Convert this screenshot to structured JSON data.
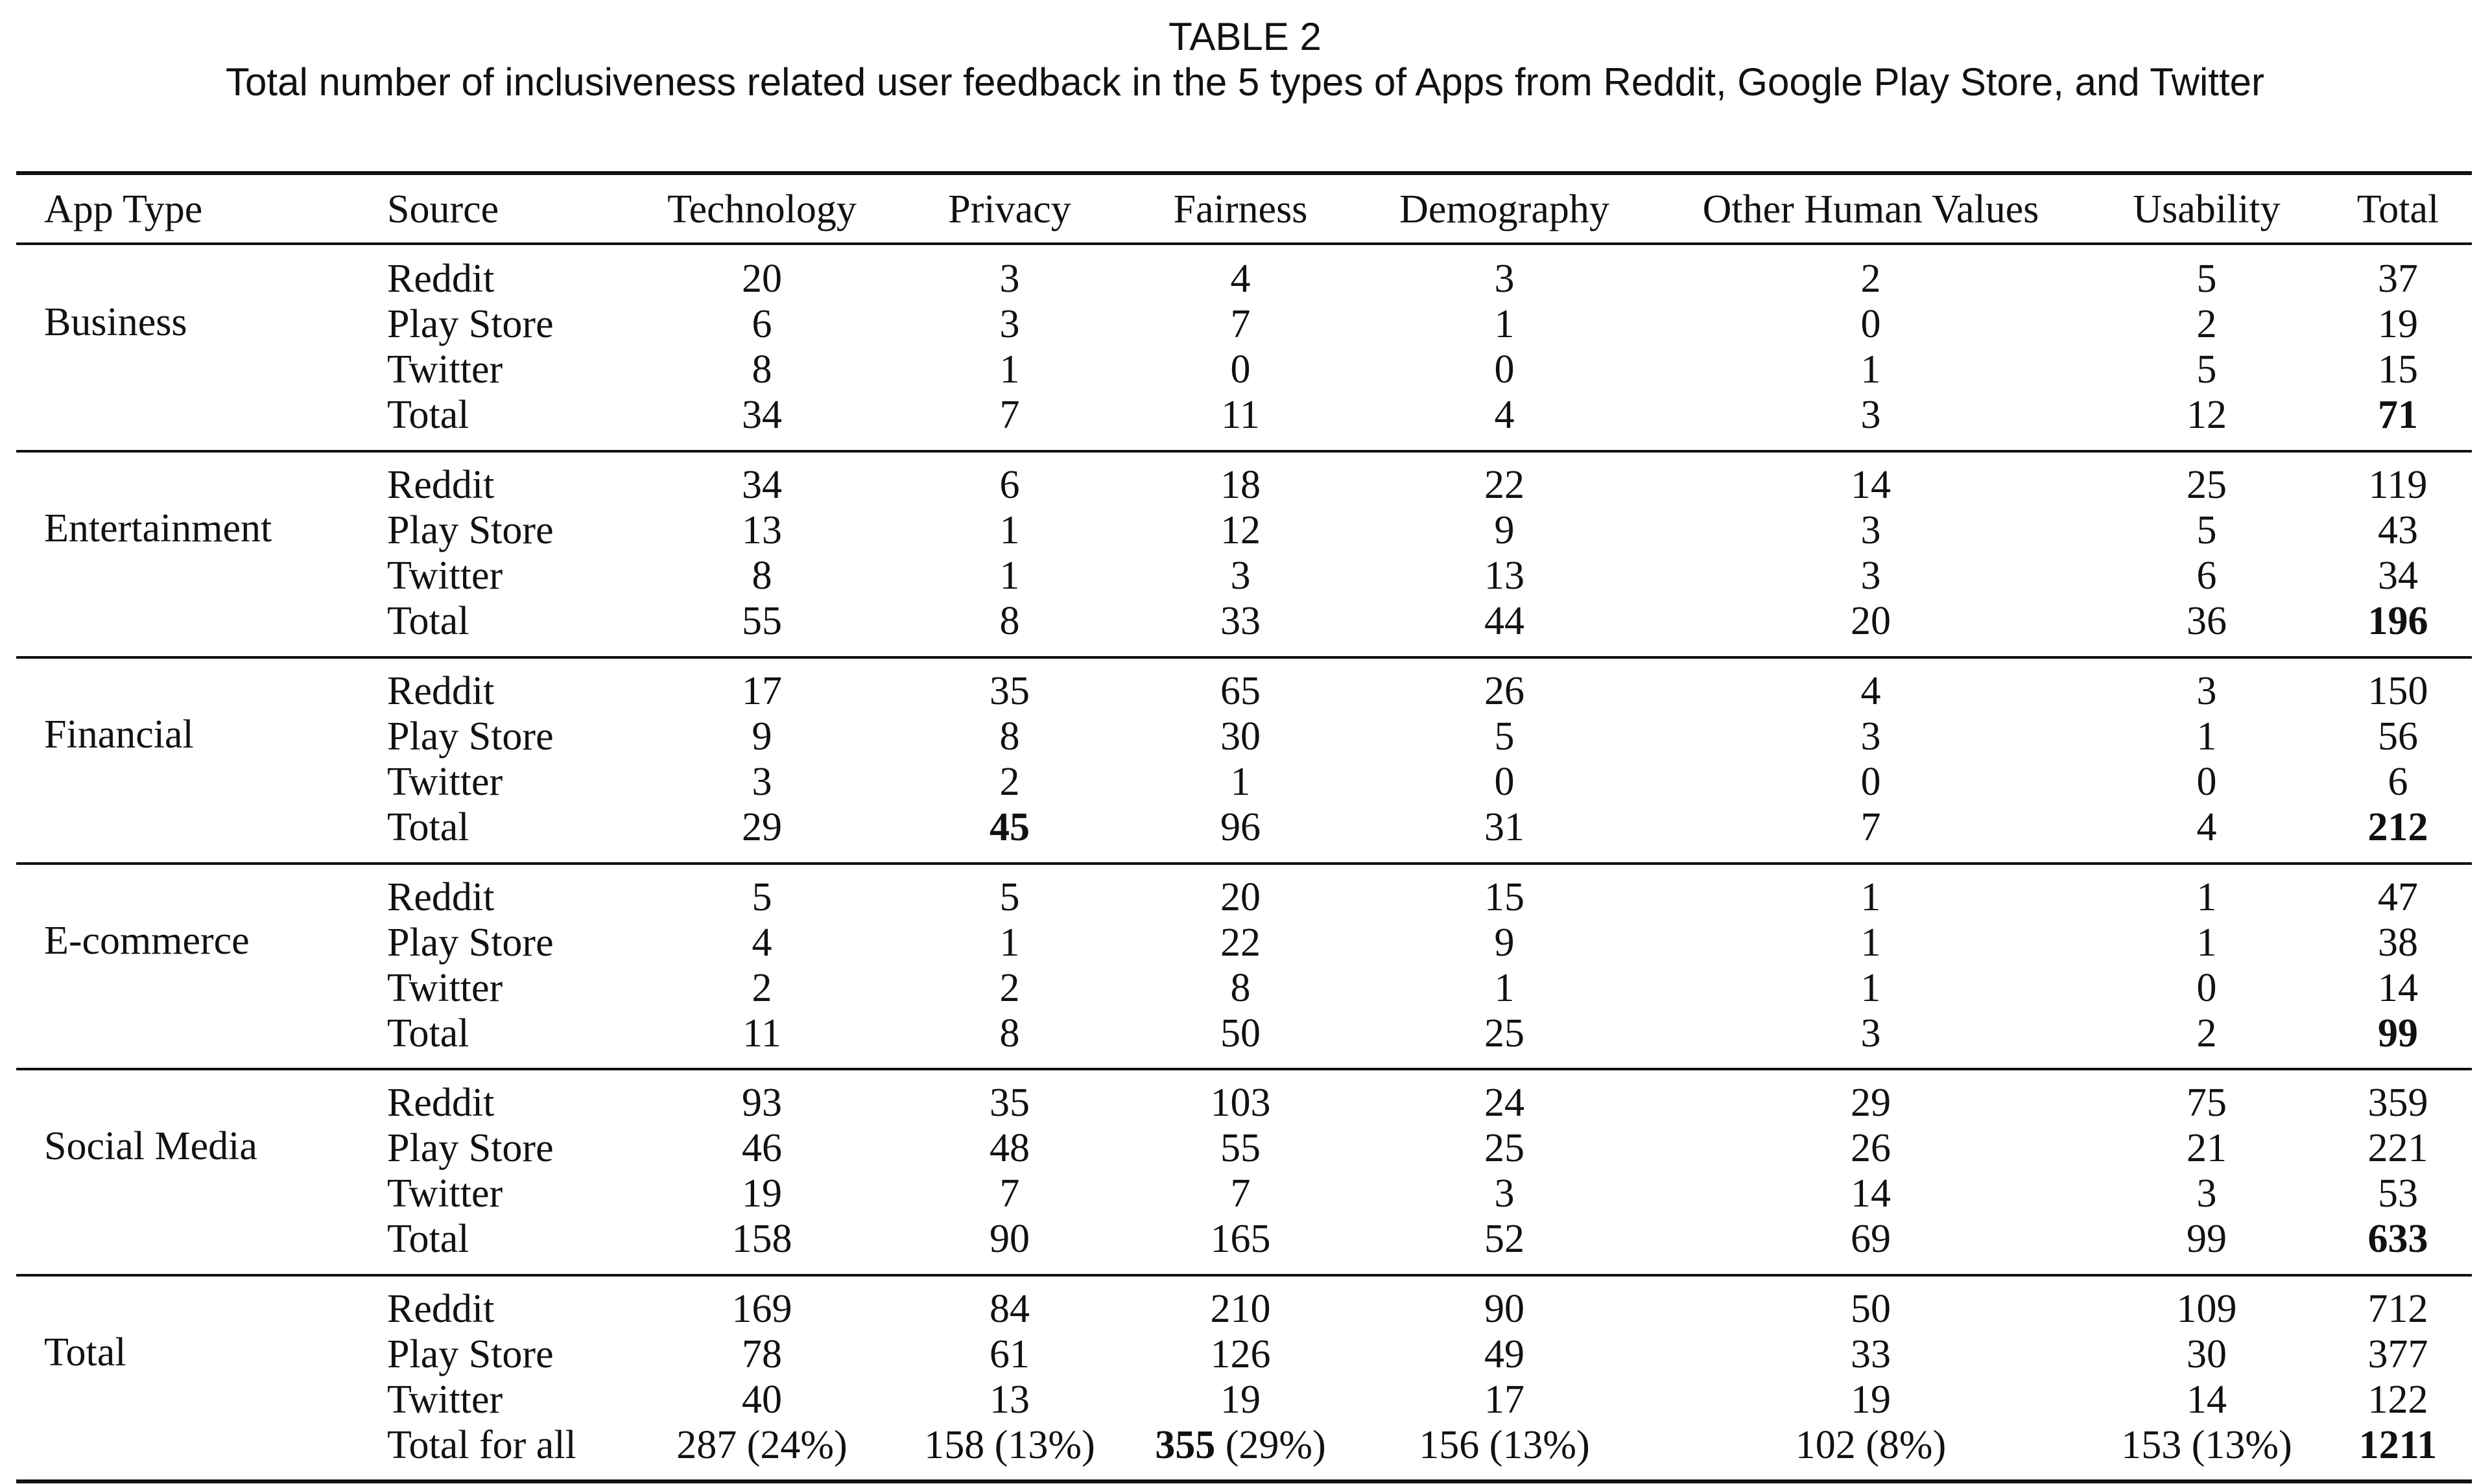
{
  "caption": {
    "label": "TABLE 2",
    "title": "Total number of inclusiveness related user feedback in the 5 types of Apps from Reddit, Google Play Store, and Twitter"
  },
  "table": {
    "headers": [
      "App Type",
      "Source",
      "Technology",
      "Privacy",
      "Fairness",
      "Demography",
      "Other Human Values",
      "Usability",
      "Total"
    ],
    "groups": [
      {
        "app_type": "Business",
        "rows": [
          {
            "source": "Reddit",
            "values": [
              "20",
              "3",
              "4",
              "3",
              "2",
              "5",
              "37"
            ]
          },
          {
            "source": "Play Store",
            "values": [
              "6",
              "3",
              "7",
              "1",
              "0",
              "2",
              "19"
            ]
          },
          {
            "source": "Twitter",
            "values": [
              "8",
              "1",
              "0",
              "0",
              "1",
              "5",
              "15"
            ]
          },
          {
            "source": "Total",
            "values": [
              "34",
              "7",
              "11",
              "4",
              "3",
              "12",
              "71"
            ]
          }
        ]
      },
      {
        "app_type": "Entertainment",
        "rows": [
          {
            "source": "Reddit",
            "values": [
              "34",
              "6",
              "18",
              "22",
              "14",
              "25",
              "119"
            ]
          },
          {
            "source": "Play Store",
            "values": [
              "13",
              "1",
              "12",
              "9",
              "3",
              "5",
              "43"
            ]
          },
          {
            "source": "Twitter",
            "values": [
              "8",
              "1",
              "3",
              "13",
              "3",
              "6",
              "34"
            ]
          },
          {
            "source": "Total",
            "values": [
              "55",
              "8",
              "33",
              "44",
              "20",
              "36",
              "196"
            ]
          }
        ]
      },
      {
        "app_type": "Financial",
        "rows": [
          {
            "source": "Reddit",
            "values": [
              "17",
              "35",
              "65",
              "26",
              "4",
              "3",
              "150"
            ]
          },
          {
            "source": "Play Store",
            "values": [
              "9",
              "8",
              "30",
              "5",
              "3",
              "1",
              "56"
            ]
          },
          {
            "source": "Twitter",
            "values": [
              "3",
              "2",
              "1",
              "0",
              "0",
              "0",
              "6"
            ]
          },
          {
            "source": "Total",
            "values": [
              "29",
              "45",
              "96",
              "31",
              "7",
              "4",
              "212"
            ]
          }
        ]
      },
      {
        "app_type": "E-commerce",
        "rows": [
          {
            "source": "Reddit",
            "values": [
              "5",
              "5",
              "20",
              "15",
              "1",
              "1",
              "47"
            ]
          },
          {
            "source": "Play Store",
            "values": [
              "4",
              "1",
              "22",
              "9",
              "1",
              "1",
              "38"
            ]
          },
          {
            "source": "Twitter",
            "values": [
              "2",
              "2",
              "8",
              "1",
              "1",
              "0",
              "14"
            ]
          },
          {
            "source": "Total",
            "values": [
              "11",
              "8",
              "50",
              "25",
              "3",
              "2",
              "99"
            ]
          }
        ]
      },
      {
        "app_type": "Social Media",
        "rows": [
          {
            "source": "Reddit",
            "values": [
              "93",
              "35",
              "103",
              "24",
              "29",
              "75",
              "359"
            ]
          },
          {
            "source": "Play Store",
            "values": [
              "46",
              "48",
              "55",
              "25",
              "26",
              "21",
              "221"
            ]
          },
          {
            "source": "Twitter",
            "values": [
              "19",
              "7",
              "7",
              "3",
              "14",
              "3",
              "53"
            ]
          },
          {
            "source": "Total",
            "values": [
              "158",
              "90",
              "165",
              "52",
              "69",
              "99",
              "633"
            ]
          }
        ]
      },
      {
        "app_type": "Total",
        "rows": [
          {
            "source": "Reddit",
            "values": [
              "169",
              "84",
              "210",
              "90",
              "50",
              "109",
              "712"
            ]
          },
          {
            "source": "Play Store",
            "values": [
              "78",
              "61",
              "126",
              "49",
              "33",
              "30",
              "377"
            ]
          },
          {
            "source": "Twitter",
            "values": [
              "40",
              "13",
              "19",
              "17",
              "19",
              "14",
              "122"
            ]
          },
          {
            "source": "Total for all",
            "values": [
              "287 (24%)",
              "158 (13%)",
              "355 (29%)",
              "156 (13%)",
              "102 (8%)",
              "153 (13%)",
              "1211"
            ]
          }
        ]
      }
    ],
    "bold_cells": [
      "Business/Total/Total = 71",
      "Entertainment/Total/Total = 196",
      "Financial/Total/Privacy = 45",
      "Financial/Total/Total = 212",
      "E-commerce/Total/Total = 99",
      "Social Media/Total/Total = 633",
      "Total/Total for all/Fairness = 355",
      "Total/Total for all/Total = 1211"
    ]
  }
}
